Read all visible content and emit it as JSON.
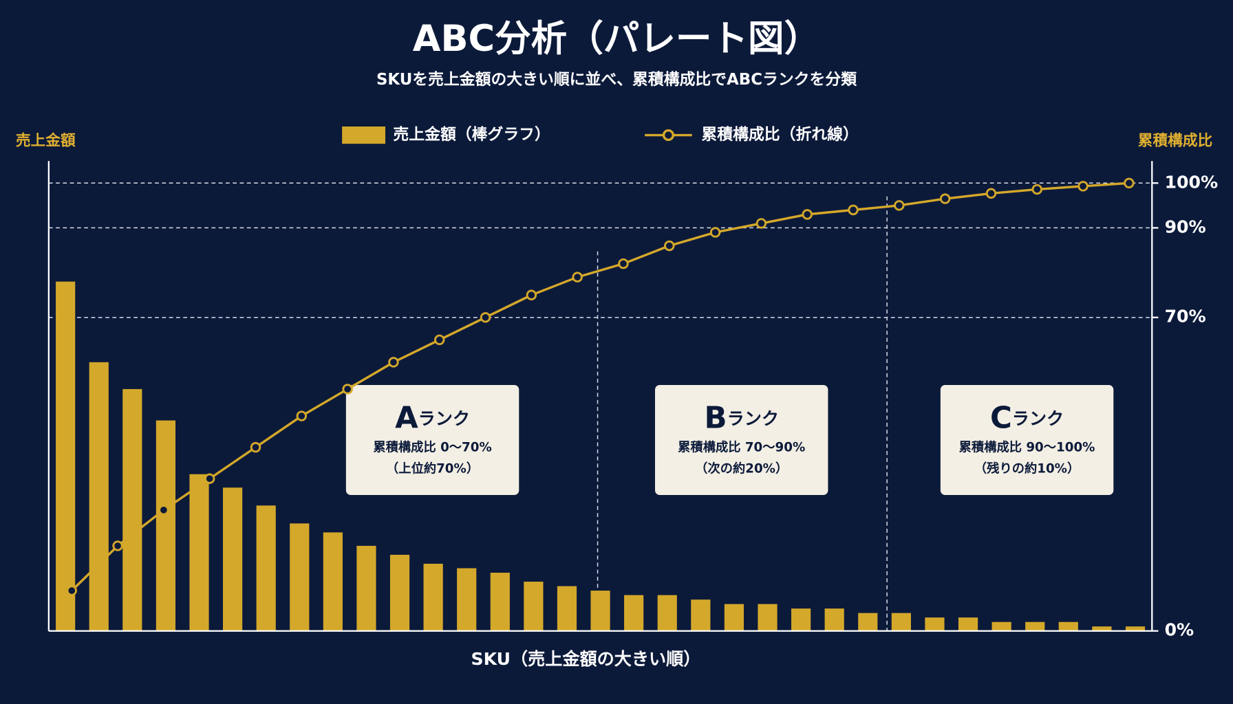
{
  "chart_data": [
    {
      "type": "bar",
      "title": "ABC分析（パレート図）",
      "subtitle": "SKUを売上金額の大きい順に並べ、累積構成比でABCランクを分類",
      "y_label": "売上金額",
      "x_label": "SKU（売上金額の大きい順）",
      "categories": [
        null,
        null,
        null,
        null,
        null,
        null,
        null,
        null,
        null,
        null,
        null,
        null,
        null,
        null,
        null,
        null,
        null,
        null,
        null,
        null,
        null,
        null,
        null,
        null,
        null,
        null,
        null,
        null,
        null,
        null,
        null,
        null,
        null
      ],
      "series": [
        {
          "name": "売上金額（棒グラフ）",
          "color": "#d4a82a",
          "values": [
            78,
            60,
            54,
            47,
            35,
            32,
            28,
            24,
            22,
            19,
            17,
            15,
            14,
            13,
            11,
            10,
            9,
            8,
            8,
            7,
            6,
            6,
            5,
            5,
            4,
            4,
            3,
            3,
            2,
            2,
            2,
            1,
            1
          ]
        }
      ],
      "ylim": [
        0,
        100
      ]
    },
    {
      "type": "line",
      "y2_label": "累積構成比",
      "categories": [
        null,
        null,
        null,
        null,
        null,
        null,
        null,
        null,
        null,
        null,
        null,
        null,
        null,
        null,
        null,
        null,
        null,
        null,
        null,
        null,
        null,
        null,
        null,
        null
      ],
      "series": [
        {
          "name": "累積構成比（折れ線）",
          "color": "#d4a82a",
          "axis": "y2",
          "values": [
            9,
            19,
            27,
            34,
            41,
            48,
            54,
            60,
            65,
            70,
            75,
            79,
            82,
            86,
            89,
            91,
            93,
            94,
            95,
            96.5,
            97.7,
            98.6,
            99.3,
            100
          ]
        }
      ],
      "y2lim": [
        0,
        100
      ],
      "y2ticks": [
        {
          "value": 0,
          "label": "0%"
        },
        {
          "value": 70,
          "label": "70%"
        },
        {
          "value": 90,
          "label": "90%"
        },
        {
          "value": 100,
          "label": "100%"
        }
      ],
      "grid": true,
      "annotations": [
        {
          "rank": "A",
          "suffix": "ランク",
          "line1": "累積構成比 0〜70%",
          "line2": "（上位約70%）"
        },
        {
          "rank": "B",
          "suffix": "ランク",
          "line1": "累積構成比 70〜90%",
          "line2": "（次の約20%）"
        },
        {
          "rank": "C",
          "suffix": "ランク",
          "line1": "累積構成比 90〜100%",
          "line2": "（残りの約10%）"
        }
      ]
    }
  ]
}
